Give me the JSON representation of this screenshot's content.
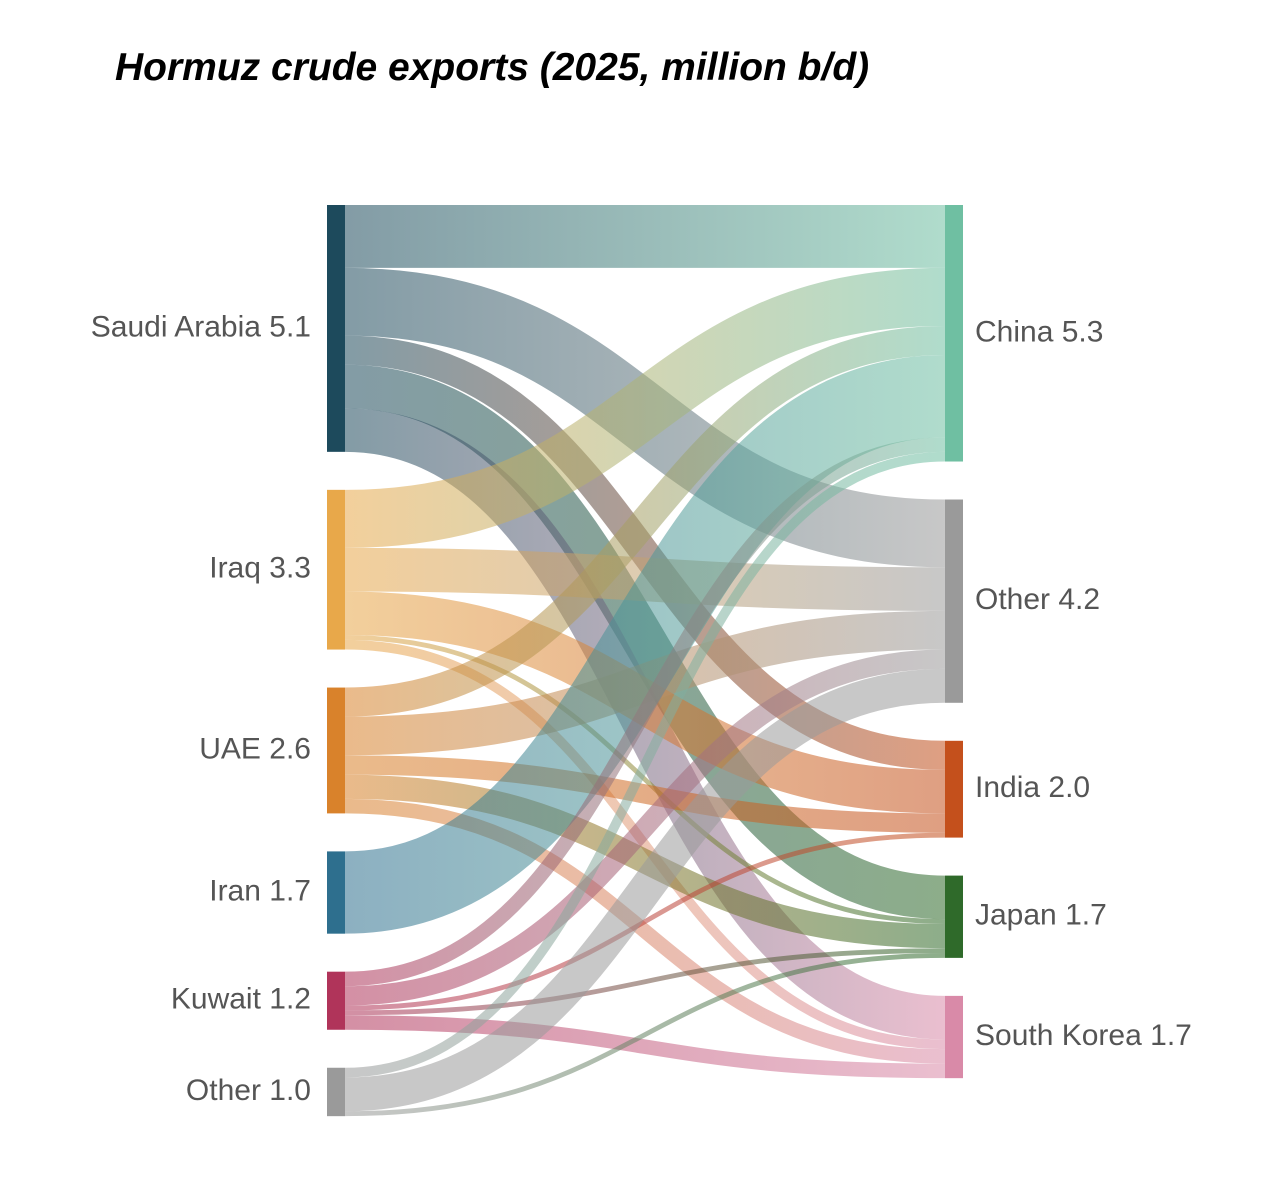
{
  "chart_data": {
    "type": "sankey",
    "title": "Hormuz crude exports (2025, million b/d)",
    "sources": [
      {
        "name": "Saudi Arabia",
        "value": 5.1,
        "color": "#1d4a5c"
      },
      {
        "name": "Iraq",
        "value": 3.3,
        "color": "#e8a84a"
      },
      {
        "name": "UAE",
        "value": 2.6,
        "color": "#d9822b"
      },
      {
        "name": "Iran",
        "value": 1.7,
        "color": "#2e6f8e"
      },
      {
        "name": "Kuwait",
        "value": 1.2,
        "color": "#b0345a"
      },
      {
        "name": "Other",
        "value": 1,
        "value_label": "1.0",
        "color": "#9a9a9a"
      }
    ],
    "targets": [
      {
        "name": "China",
        "value": 5.3,
        "color": "#6fbfa2"
      },
      {
        "name": "Other",
        "value": 4.2,
        "color": "#9a9a9a"
      },
      {
        "name": "India",
        "value": 2,
        "value_label": "2.0",
        "color": "#c4501c"
      },
      {
        "name": "Japan",
        "value": 1.7,
        "color": "#2f6a2a"
      },
      {
        "name": "South Korea",
        "value": 1.7,
        "color": "#d98aa8"
      }
    ],
    "links": [
      {
        "source": 0,
        "target": 0,
        "value": 1.3
      },
      {
        "source": 0,
        "target": 1,
        "value": 1.4
      },
      {
        "source": 0,
        "target": 2,
        "value": 0.6
      },
      {
        "source": 0,
        "target": 3,
        "value": 0.9
      },
      {
        "source": 0,
        "target": 4,
        "value": 0.9
      },
      {
        "source": 1,
        "target": 0,
        "value": 1.2
      },
      {
        "source": 1,
        "target": 1,
        "value": 0.9
      },
      {
        "source": 1,
        "target": 2,
        "value": 0.9
      },
      {
        "source": 1,
        "target": 3,
        "value": 0.1
      },
      {
        "source": 1,
        "target": 4,
        "value": 0.2
      },
      {
        "source": 2,
        "target": 0,
        "value": 0.6
      },
      {
        "source": 2,
        "target": 1,
        "value": 0.8
      },
      {
        "source": 2,
        "target": 2,
        "value": 0.4
      },
      {
        "source": 2,
        "target": 3,
        "value": 0.5
      },
      {
        "source": 2,
        "target": 4,
        "value": 0.3
      },
      {
        "source": 3,
        "target": 0,
        "value": 1.7
      },
      {
        "source": 4,
        "target": 0,
        "value": 0.3
      },
      {
        "source": 4,
        "target": 1,
        "value": 0.4
      },
      {
        "source": 4,
        "target": 2,
        "value": 0.1
      },
      {
        "source": 4,
        "target": 3,
        "value": 0.1
      },
      {
        "source": 4,
        "target": 4,
        "value": 0.3
      },
      {
        "source": 5,
        "target": 0,
        "value": 0.2
      },
      {
        "source": 5,
        "target": 1,
        "value": 0.7
      },
      {
        "source": 5,
        "target": 3,
        "value": 0.1
      }
    ]
  }
}
